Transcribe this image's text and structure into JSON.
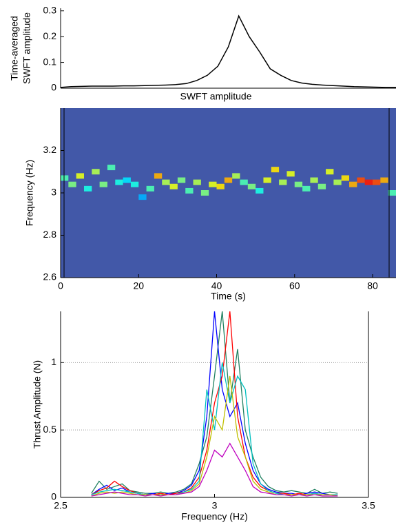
{
  "chart_data": [
    {
      "type": "line",
      "y_label": [
        "Time-averaged",
        "SWFT amplitude"
      ],
      "x_label": "SWFT amplitude",
      "values": [
        0.003,
        0.006,
        0.007,
        0.008,
        0.008,
        0.008,
        0.009,
        0.009,
        0.01,
        0.011,
        0.012,
        0.014,
        0.018,
        0.03,
        0.05,
        0.085,
        0.16,
        0.28,
        0.2,
        0.14,
        0.075,
        0.05,
        0.03,
        0.02,
        0.015,
        0.012,
        0.01,
        0.008,
        0.006,
        0.005,
        0.004,
        0.003,
        0.003
      ],
      "color": "#000000",
      "ylim": [
        0,
        0.31
      ],
      "yticks": [
        0,
        0.1,
        0.2,
        0.3
      ]
    },
    {
      "type": "heatmap",
      "x_label": "Time (s)",
      "y_label": "Frequency (Hz)",
      "x": [
        1,
        3,
        5,
        7,
        9,
        11,
        13,
        15,
        17,
        19,
        21,
        23,
        25,
        27,
        29,
        31,
        33,
        35,
        37,
        39,
        41,
        43,
        45,
        47,
        49,
        51,
        53,
        55,
        57,
        59,
        61,
        63,
        65,
        67,
        69,
        71,
        73,
        75,
        77,
        79,
        81,
        83,
        85
      ],
      "values": [
        3.07,
        3.04,
        3.08,
        3.02,
        3.1,
        3.04,
        3.12,
        3.05,
        3.06,
        3.04,
        2.98,
        3.02,
        3.08,
        3.05,
        3.03,
        3.06,
        3.01,
        3.05,
        3.0,
        3.04,
        3.03,
        3.06,
        3.08,
        3.05,
        3.03,
        3.01,
        3.06,
        3.11,
        3.05,
        3.09,
        3.04,
        3.02,
        3.06,
        3.03,
        3.1,
        3.05,
        3.07,
        3.04,
        3.06,
        3.05,
        3.05,
        3.06,
        3.0
      ],
      "intensity": [
        0.45,
        0.5,
        0.6,
        0.4,
        0.55,
        0.5,
        0.45,
        0.4,
        0.35,
        0.4,
        0.3,
        0.45,
        0.7,
        0.55,
        0.6,
        0.5,
        0.45,
        0.55,
        0.5,
        0.6,
        0.65,
        0.7,
        0.55,
        0.45,
        0.5,
        0.4,
        0.6,
        0.65,
        0.55,
        0.6,
        0.5,
        0.45,
        0.55,
        0.5,
        0.6,
        0.55,
        0.65,
        0.7,
        0.8,
        0.85,
        0.8,
        0.7,
        0.45
      ],
      "xlim": [
        0,
        86
      ],
      "xticks": [
        0,
        20,
        40,
        60,
        80
      ],
      "ylim": [
        2.6,
        3.4
      ],
      "yticks": [
        2.6,
        2.8,
        3,
        3.2
      ],
      "background": "#4258a8"
    },
    {
      "type": "line",
      "x_label": "Frequency (Hz)",
      "y_label": "Thrust Amplitude (N)",
      "x": [
        2.6,
        2.625,
        2.65,
        2.675,
        2.7,
        2.725,
        2.75,
        2.775,
        2.8,
        2.825,
        2.85,
        2.875,
        2.9,
        2.925,
        2.95,
        2.975,
        3.0,
        3.025,
        3.05,
        3.075,
        3.1,
        3.125,
        3.15,
        3.175,
        3.2,
        3.225,
        3.25,
        3.275,
        3.3,
        3.325,
        3.35,
        3.375,
        3.4
      ],
      "series": [
        {
          "color": "#1f8060",
          "values": [
            0.03,
            0.12,
            0.06,
            0.08,
            0.1,
            0.05,
            0.04,
            0.03,
            0.03,
            0.04,
            0.03,
            0.04,
            0.06,
            0.1,
            0.25,
            0.45,
            0.9,
            1.38,
            0.7,
            1.1,
            0.5,
            0.3,
            0.15,
            0.08,
            0.05,
            0.04,
            0.05,
            0.04,
            0.03,
            0.06,
            0.03,
            0.04,
            0.03
          ]
        },
        {
          "color": "#0000ff",
          "values": [
            0.02,
            0.06,
            0.09,
            0.05,
            0.07,
            0.04,
            0.03,
            0.02,
            0.03,
            0.02,
            0.03,
            0.03,
            0.05,
            0.09,
            0.2,
            0.6,
            1.38,
            0.8,
            0.6,
            0.7,
            0.4,
            0.2,
            0.1,
            0.06,
            0.04,
            0.03,
            0.03,
            0.02,
            0.03,
            0.04,
            0.03,
            0.02,
            0.02
          ]
        },
        {
          "color": "#ff0000",
          "values": [
            0.02,
            0.05,
            0.07,
            0.12,
            0.08,
            0.05,
            0.03,
            0.02,
            0.02,
            0.03,
            0.02,
            0.03,
            0.04,
            0.07,
            0.15,
            0.35,
            0.7,
            0.9,
            1.38,
            0.6,
            0.3,
            0.15,
            0.08,
            0.05,
            0.03,
            0.03,
            0.02,
            0.03,
            0.02,
            0.03,
            0.02,
            0.02,
            0.02
          ]
        },
        {
          "color": "#00bfbf",
          "values": [
            0.02,
            0.04,
            0.05,
            0.06,
            0.05,
            0.04,
            0.03,
            0.02,
            0.02,
            0.02,
            0.02,
            0.02,
            0.04,
            0.06,
            0.12,
            0.8,
            0.5,
            1.0,
            0.7,
            0.9,
            0.8,
            0.25,
            0.1,
            0.05,
            0.03,
            0.02,
            0.02,
            0.02,
            0.02,
            0.03,
            0.02,
            0.02,
            0.02
          ]
        },
        {
          "color": "#bfbf00",
          "values": [
            0.01,
            0.03,
            0.04,
            0.03,
            0.04,
            0.03,
            0.02,
            0.02,
            0.02,
            0.02,
            0.02,
            0.02,
            0.03,
            0.05,
            0.1,
            0.3,
            0.6,
            0.5,
            0.9,
            0.45,
            0.3,
            0.12,
            0.06,
            0.04,
            0.02,
            0.02,
            0.02,
            0.02,
            0.02,
            0.02,
            0.02,
            0.02,
            0.01
          ]
        },
        {
          "color": "#bf00bf",
          "values": [
            0.01,
            0.02,
            0.03,
            0.04,
            0.03,
            0.02,
            0.02,
            0.01,
            0.02,
            0.01,
            0.02,
            0.02,
            0.03,
            0.04,
            0.08,
            0.2,
            0.35,
            0.3,
            0.4,
            0.3,
            0.2,
            0.08,
            0.04,
            0.03,
            0.02,
            0.02,
            0.01,
            0.02,
            0.01,
            0.02,
            0.01,
            0.01,
            0.01
          ]
        }
      ],
      "xlim": [
        2.5,
        3.5
      ],
      "xticks": [
        2.5,
        3,
        3.5
      ],
      "ylim": [
        0,
        1.38
      ],
      "yticks": [
        0,
        0.5,
        1
      ],
      "grid": true
    }
  ]
}
